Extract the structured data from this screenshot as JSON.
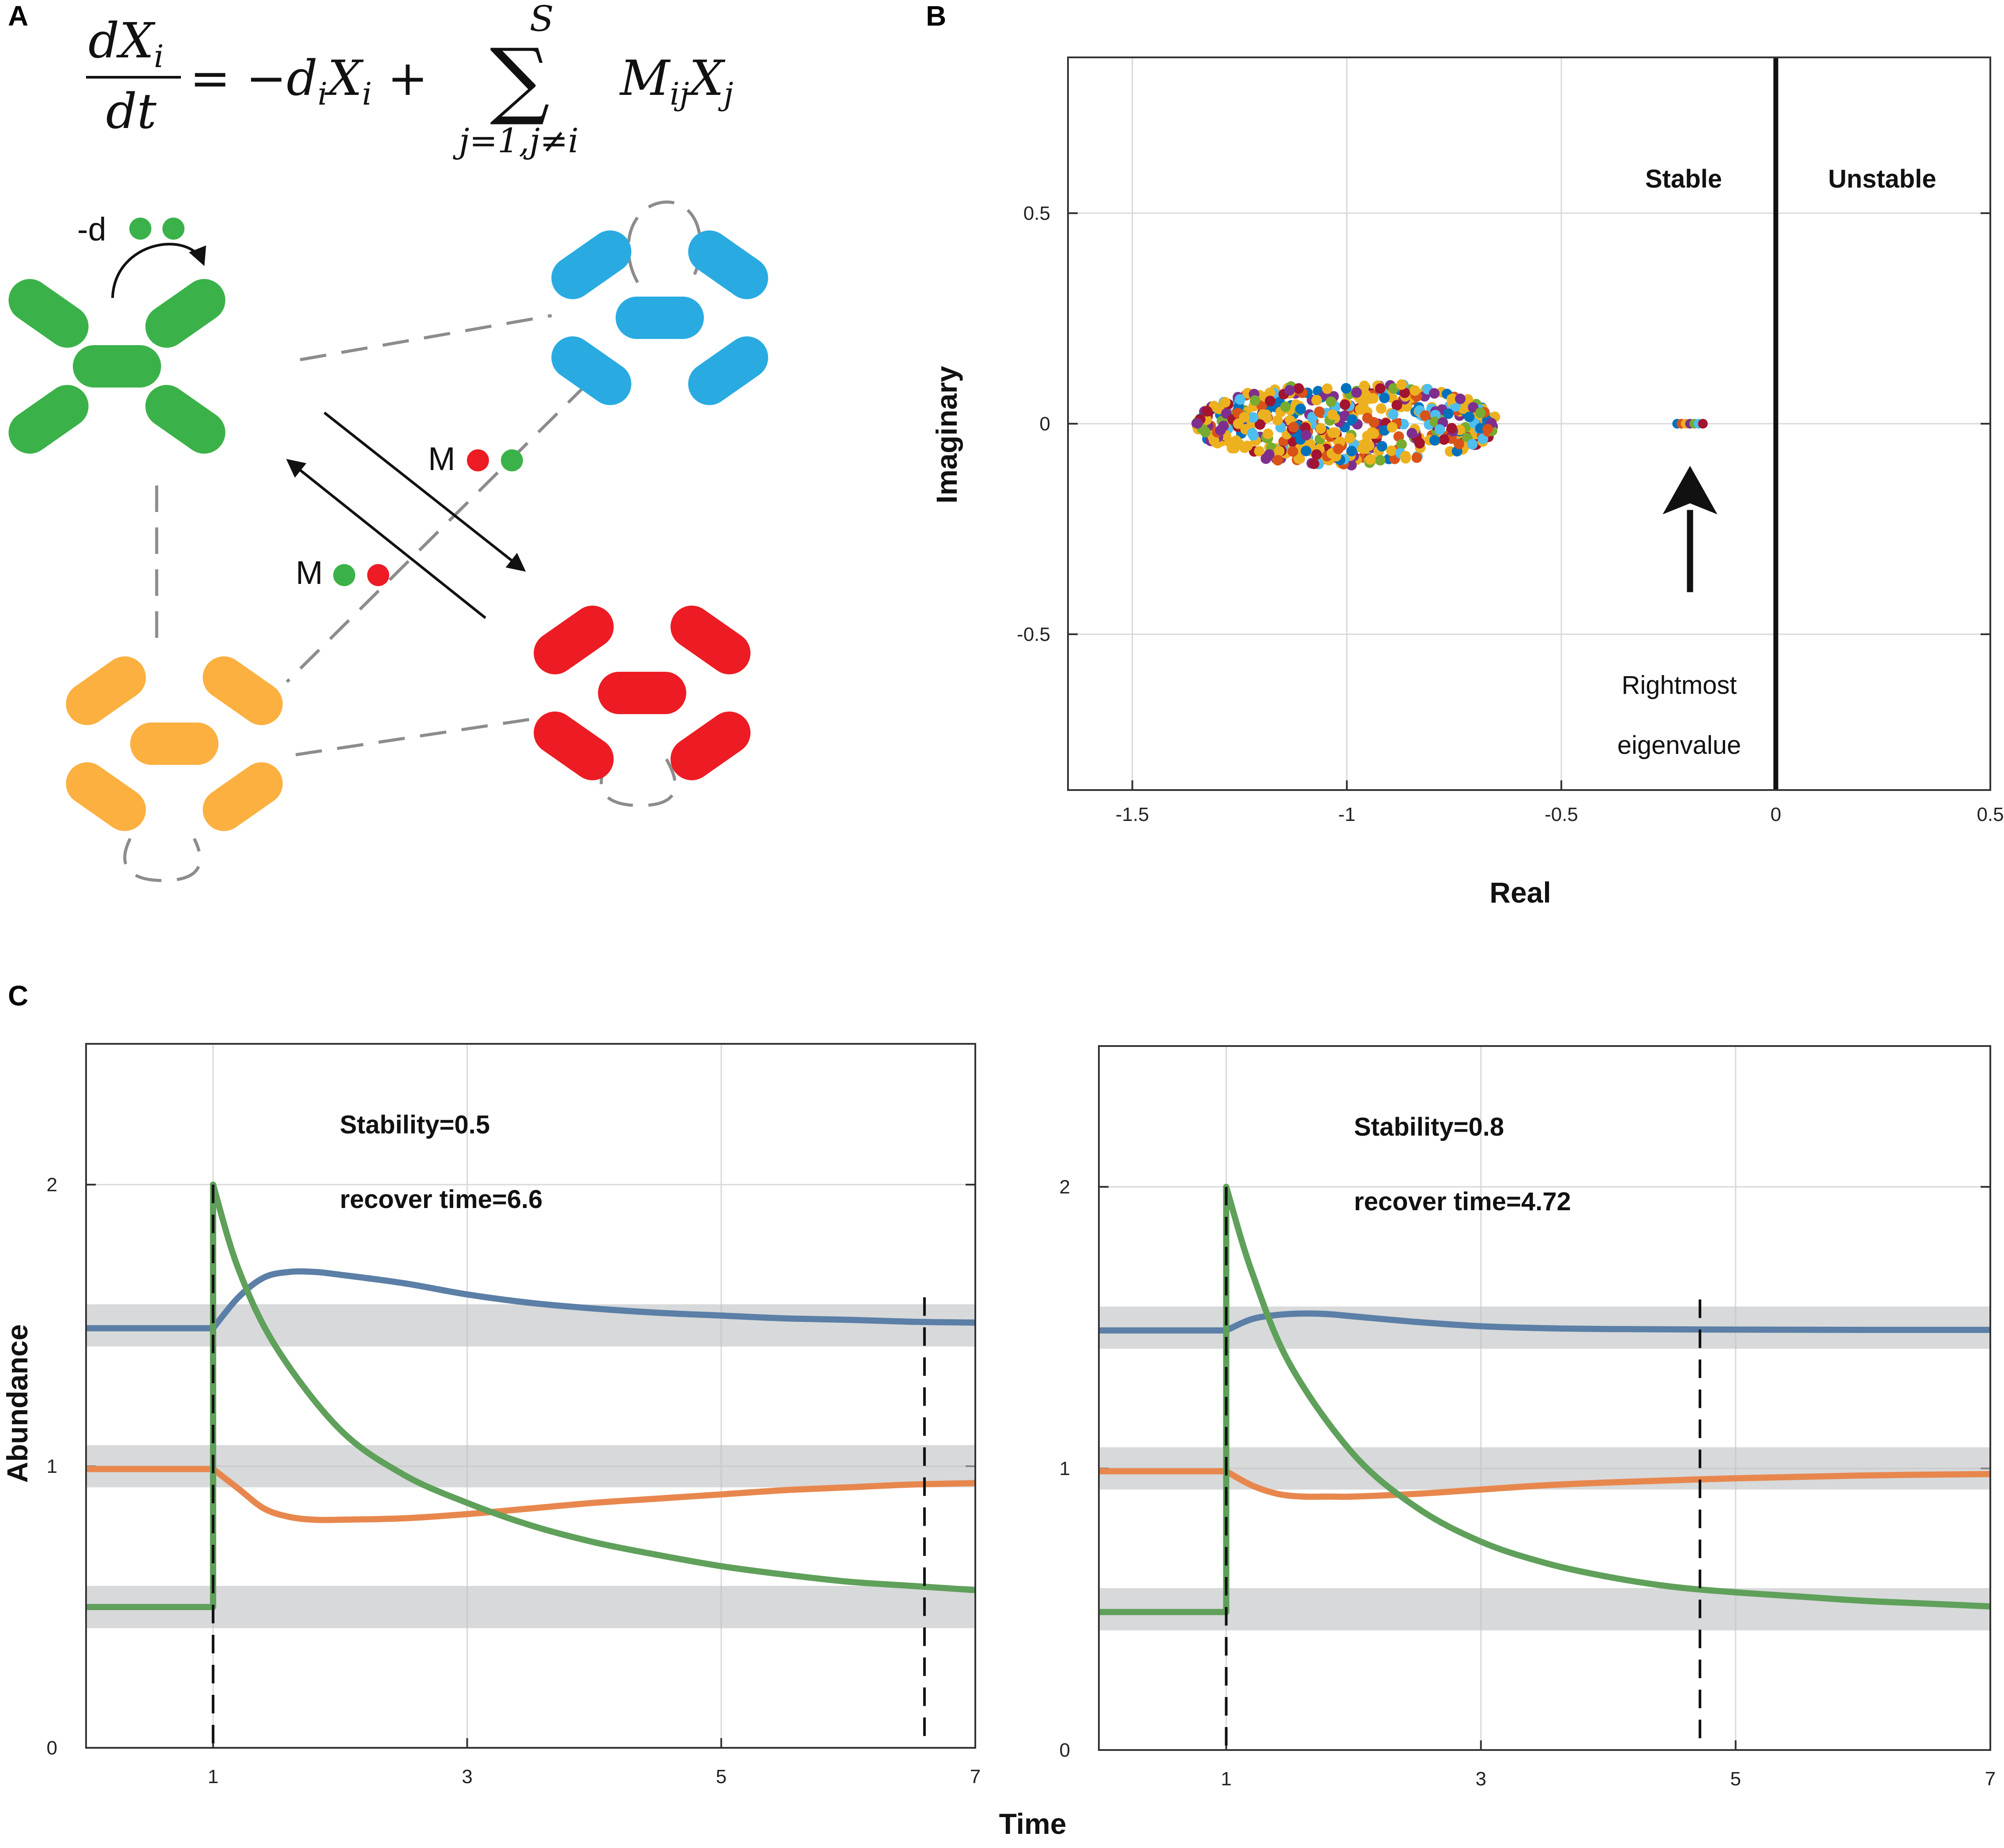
{
  "panels": {
    "a": "A",
    "b": "B",
    "c": "C"
  },
  "equation": {
    "numerator": "dX",
    "numerator_sub": "i",
    "denominator": "dt",
    "rhs_part1": "= −d",
    "rhs_part1_sub": "i",
    "rhs_part2": "X",
    "rhs_part2_sub": "i",
    "rhs_part3": " +",
    "sum_upper": "S",
    "sum_symbol": "∑",
    "sum_lower": "j=1,j≠i",
    "term": "M",
    "term_sub": "ij",
    "term2": "X",
    "term2_sub": "j"
  },
  "diagram": {
    "self_loss_label": "-d",
    "interaction_label_1": "M",
    "interaction_label_2": "M",
    "colors": {
      "green": "#3bb249",
      "blue": "#29abe2",
      "red": "#ed1c24",
      "orange": "#fbb040",
      "dash": "#8c8c8c"
    }
  },
  "chart_data": [
    {
      "id": "eigenvalues",
      "type": "scatter",
      "xlabel": "Real",
      "ylabel": "Imaginary",
      "xlim": [
        -1.65,
        0.5
      ],
      "ylim": [
        -0.87,
        0.87
      ],
      "xticks": [
        -1.5,
        -1,
        -0.5,
        0,
        0.5
      ],
      "xtick_labels": [
        "-1.5",
        "-1",
        "-0.5",
        "0",
        "0.5"
      ],
      "yticks": [
        0.5,
        0,
        -0.5
      ],
      "ytick_labels": [
        "0.5",
        "0",
        "-0.5"
      ],
      "grid": true,
      "boundary_x": 0,
      "region_labels": [
        "Stable",
        "Unstable"
      ],
      "annotation": [
        "Rightmost",
        "eigenvalue"
      ],
      "cloud": {
        "center_real": -1.0,
        "real_halfwidth": 0.35,
        "imag_halfwidth": 0.1,
        "count": 520
      },
      "rightmost": {
        "real_min": -0.23,
        "real_max": -0.17,
        "imag": 0
      },
      "arrow": {
        "x": -0.2,
        "y_from": -0.4,
        "y_to": -0.1
      },
      "point_colors": [
        "#0072bd",
        "#d95319",
        "#edb120",
        "#7e2f8e",
        "#77ac30",
        "#4dbeee",
        "#a2142f",
        "#edb120",
        "#edb120"
      ]
    },
    {
      "id": "recovery-stability-0.5",
      "type": "line",
      "xlabel": "Time",
      "ylabel": "Abundance",
      "xlim": [
        0,
        7
      ],
      "ylim": [
        0,
        2.5
      ],
      "xticks": [
        1,
        3,
        5,
        7
      ],
      "xtick_labels": [
        "1",
        "3",
        "5",
        "7"
      ],
      "yticks": [
        0,
        1,
        2
      ],
      "ytick_labels": [
        "0",
        "1",
        "2"
      ],
      "grid": true,
      "annotation_stability": "Stability=0.5",
      "annotation_recover": "recover time=6.6",
      "perturbation_time": 1,
      "recover_time": 6.6,
      "bands": [
        {
          "center": 1.5,
          "half": 0.075
        },
        {
          "center": 1.0,
          "half": 0.075
        },
        {
          "center": 0.5,
          "half": 0.075
        }
      ],
      "series": [
        {
          "name": "blue",
          "color": "#5b7fa6",
          "x": [
            0,
            1,
            1.2,
            1.4,
            1.6,
            1.8,
            2,
            2.5,
            3,
            3.5,
            4,
            4.5,
            5,
            5.5,
            6,
            6.5,
            7
          ],
          "y": [
            1.49,
            1.49,
            1.6,
            1.67,
            1.69,
            1.69,
            1.68,
            1.65,
            1.61,
            1.58,
            1.56,
            1.545,
            1.535,
            1.525,
            1.52,
            1.513,
            1.51
          ]
        },
        {
          "name": "orange",
          "color": "#e8874d",
          "x": [
            0,
            1,
            1.2,
            1.4,
            1.6,
            1.8,
            2,
            2.5,
            3,
            3.5,
            4,
            4.5,
            5,
            5.5,
            6,
            6.5,
            7
          ],
          "y": [
            0.99,
            0.99,
            0.92,
            0.85,
            0.82,
            0.81,
            0.81,
            0.815,
            0.83,
            0.85,
            0.87,
            0.885,
            0.9,
            0.915,
            0.925,
            0.935,
            0.94
          ]
        },
        {
          "name": "green",
          "color": "#5fa05a",
          "x": [
            0,
            1,
            1.2,
            1.5,
            2,
            2.5,
            3,
            3.5,
            4,
            4.5,
            5,
            5.5,
            6,
            6.5,
            7
          ],
          "y": [
            0.5,
            0.5,
            1.7,
            1.42,
            1.13,
            0.97,
            0.87,
            0.79,
            0.73,
            0.685,
            0.645,
            0.615,
            0.59,
            0.575,
            0.56
          ]
        }
      ]
    },
    {
      "id": "recovery-stability-0.8",
      "type": "line",
      "xlabel": "Time",
      "ylabel": "",
      "xlim": [
        0,
        7
      ],
      "ylim": [
        0,
        2.5
      ],
      "xticks": [
        1,
        3,
        5,
        7
      ],
      "xtick_labels": [
        "1",
        "3",
        "5",
        "7"
      ],
      "yticks": [
        0,
        1,
        2
      ],
      "ytick_labels": [
        "0",
        "1",
        "2"
      ],
      "grid": true,
      "annotation_stability": "Stability=0.8",
      "annotation_recover": "recover time=4.72",
      "perturbation_time": 1,
      "recover_time": 4.72,
      "bands": [
        {
          "center": 1.5,
          "half": 0.075
        },
        {
          "center": 1.0,
          "half": 0.075
        },
        {
          "center": 0.5,
          "half": 0.075
        }
      ],
      "series": [
        {
          "name": "blue",
          "color": "#5b7fa6",
          "x": [
            0,
            1,
            1.2,
            1.4,
            1.6,
            1.8,
            2,
            2.5,
            3,
            3.5,
            4,
            5,
            6,
            7
          ],
          "y": [
            1.49,
            1.49,
            1.53,
            1.545,
            1.55,
            1.548,
            1.54,
            1.52,
            1.505,
            1.498,
            1.495,
            1.493,
            1.492,
            1.492
          ]
        },
        {
          "name": "orange",
          "color": "#e8874d",
          "x": [
            0,
            1,
            1.2,
            1.4,
            1.6,
            1.8,
            2,
            2.5,
            3,
            3.5,
            4,
            5,
            6,
            7
          ],
          "y": [
            0.99,
            0.99,
            0.94,
            0.91,
            0.9,
            0.9,
            0.9,
            0.91,
            0.925,
            0.94,
            0.95,
            0.965,
            0.975,
            0.98
          ]
        },
        {
          "name": "green",
          "color": "#5fa05a",
          "x": [
            0,
            1,
            1.2,
            1.5,
            2,
            2.5,
            3,
            3.5,
            4,
            4.5,
            5,
            5.5,
            6,
            6.5,
            7
          ],
          "y": [
            0.49,
            0.49,
            1.7,
            1.37,
            1.05,
            0.86,
            0.74,
            0.665,
            0.615,
            0.58,
            0.56,
            0.545,
            0.53,
            0.52,
            0.51
          ]
        }
      ]
    }
  ]
}
